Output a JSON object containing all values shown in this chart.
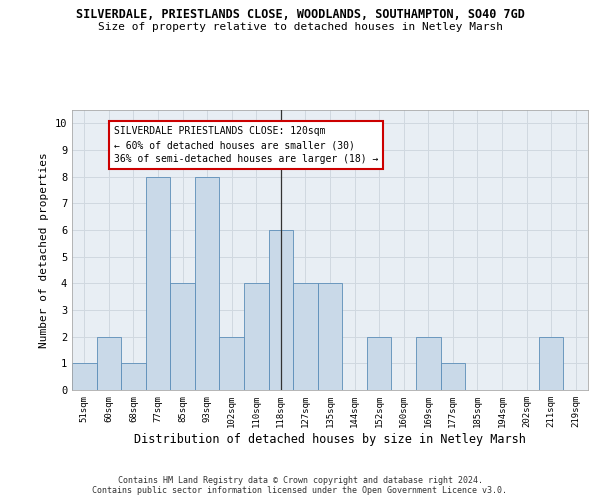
{
  "title_line1": "SILVERDALE, PRIESTLANDS CLOSE, WOODLANDS, SOUTHAMPTON, SO40 7GD",
  "title_line2": "Size of property relative to detached houses in Netley Marsh",
  "xlabel": "Distribution of detached houses by size in Netley Marsh",
  "ylabel": "Number of detached properties",
  "categories": [
    "51sqm",
    "60sqm",
    "68sqm",
    "77sqm",
    "85sqm",
    "93sqm",
    "102sqm",
    "110sqm",
    "118sqm",
    "127sqm",
    "135sqm",
    "144sqm",
    "152sqm",
    "160sqm",
    "169sqm",
    "177sqm",
    "185sqm",
    "194sqm",
    "202sqm",
    "211sqm",
    "219sqm"
  ],
  "values": [
    1,
    2,
    1,
    8,
    4,
    8,
    2,
    4,
    6,
    4,
    4,
    0,
    2,
    0,
    2,
    1,
    0,
    0,
    0,
    2,
    0
  ],
  "bar_color": "#c9d9e8",
  "bar_edge_color": "#5b8db8",
  "highlight_index": 8,
  "vline_color": "#333333",
  "annotation_text": "SILVERDALE PRIESTLANDS CLOSE: 120sqm\n← 60% of detached houses are smaller (30)\n36% of semi-detached houses are larger (18) →",
  "annotation_box_color": "#ffffff",
  "annotation_box_edge_color": "#cc0000",
  "ylim": [
    0,
    10.5
  ],
  "yticks": [
    0,
    1,
    2,
    3,
    4,
    5,
    6,
    7,
    8,
    9,
    10
  ],
  "grid_color": "#d0d8e0",
  "background_color": "#e8eef4",
  "footer_text": "Contains HM Land Registry data © Crown copyright and database right 2024.\nContains public sector information licensed under the Open Government Licence v3.0.",
  "title_fontsize": 8.5,
  "subtitle_fontsize": 8,
  "axis_label_fontsize": 8,
  "tick_fontsize": 6.5,
  "annotation_fontsize": 7,
  "footer_fontsize": 6
}
